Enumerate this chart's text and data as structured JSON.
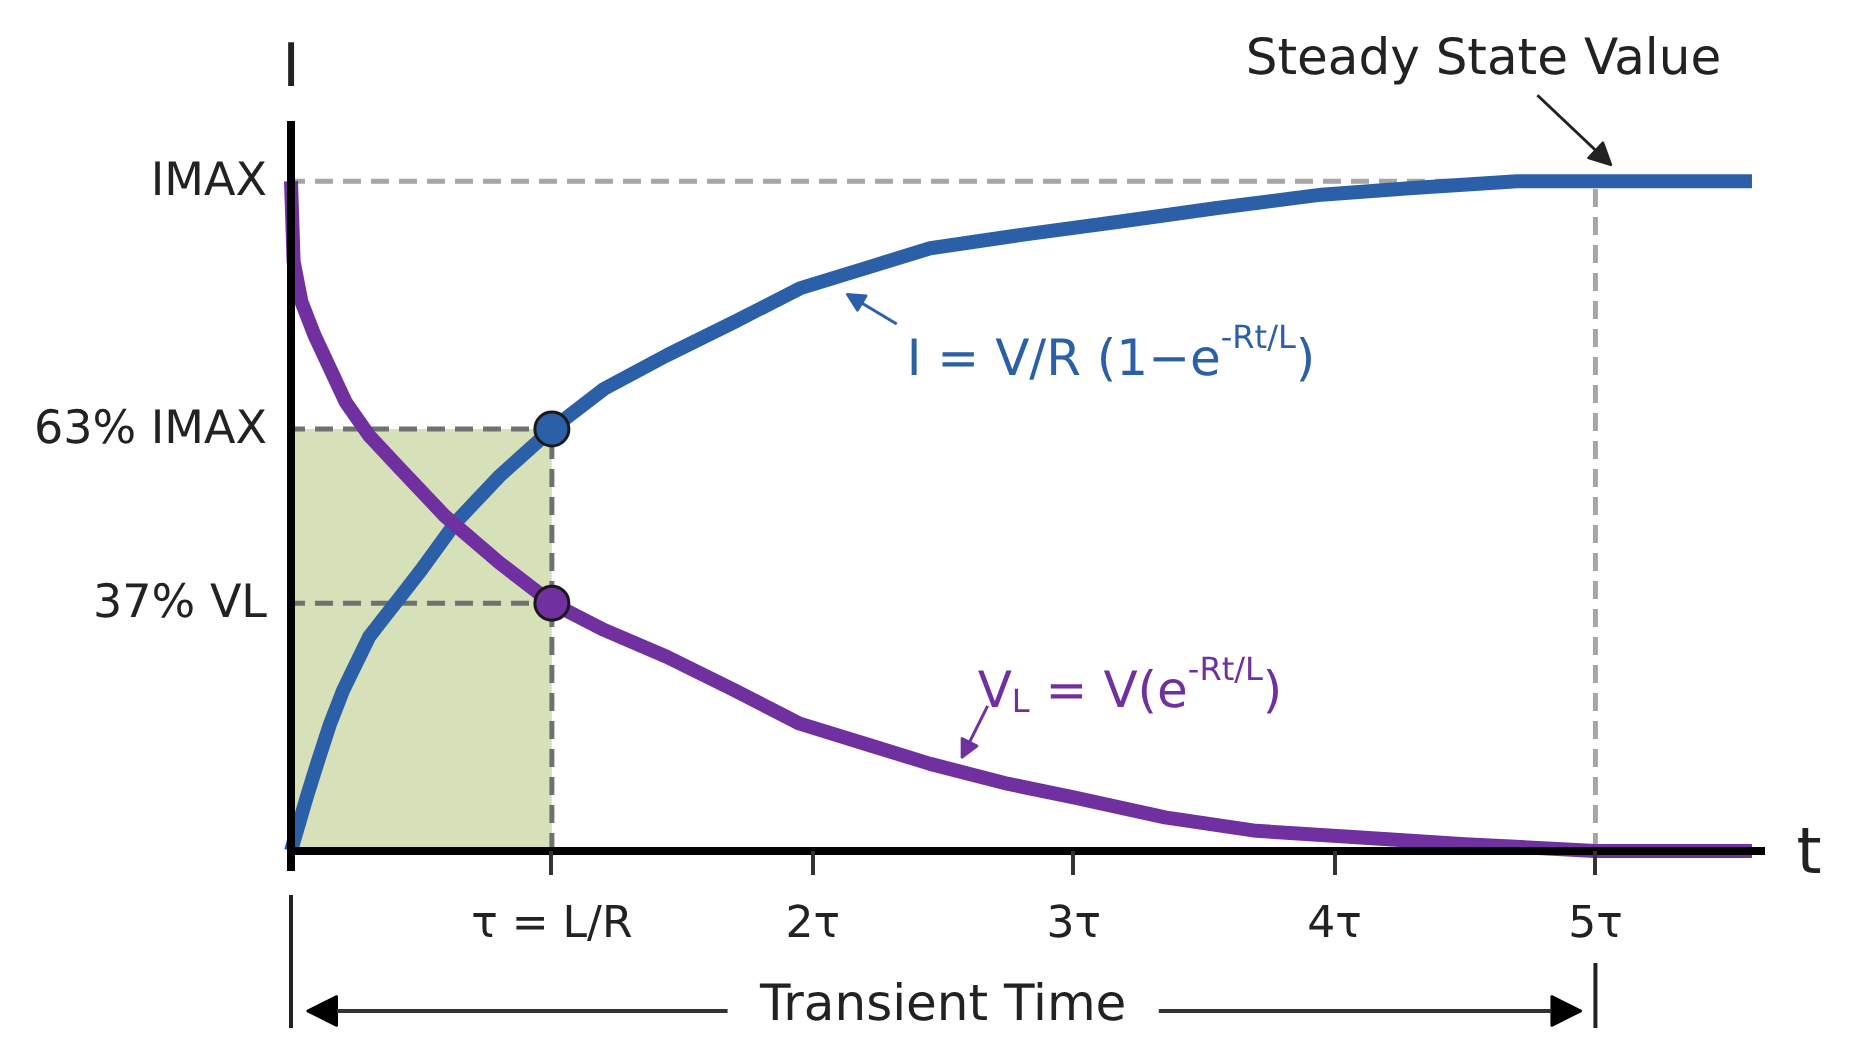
{
  "chart_data": {
    "type": "line",
    "xlabel": "t",
    "ylabel": "I",
    "annotations": [
      {
        "text": "Steady State Value",
        "x": 5,
        "y": 1
      },
      "Transient Time"
    ],
    "xlim": [
      0,
      5.65
    ],
    "ylim": [
      -0.03,
      1.09
    ],
    "xticks": [
      {
        "value": 1,
        "label": "τ = L/R"
      },
      {
        "value": 2,
        "label": "2τ"
      },
      {
        "value": 3,
        "label": "3τ"
      },
      {
        "value": 4,
        "label": "4τ"
      },
      {
        "value": 5,
        "label": "5τ"
      }
    ],
    "yticks": [
      {
        "value": 0.37,
        "label": "37% VL"
      },
      {
        "value": 0.63,
        "label": "63% IMAX"
      },
      {
        "value": 1,
        "label": "IMAX"
      }
    ],
    "bands": [
      {
        "axis": "x",
        "from": 0,
        "to": 1,
        "color": "#d6e1b9"
      }
    ],
    "ref_lines": [
      {
        "axis": "x",
        "value": 1,
        "color": "#707070",
        "line_style": "dashed"
      },
      {
        "axis": "x",
        "value": 5,
        "color": "#a6a6a6",
        "line_style": "dashed"
      },
      {
        "axis": "y",
        "value": 0.37,
        "color": "#707070",
        "line_style": "dashed"
      },
      {
        "axis": "y",
        "value": 0.63,
        "color": "#707070",
        "line_style": "dashed"
      },
      {
        "axis": "y",
        "value": 1,
        "color": "#a6a6a6",
        "line_style": "dashed"
      }
    ],
    "series": [
      {
        "name": "I = V/R (1−e$^{-Rt/L}$)",
        "color": "#2b5fa8",
        "x": [
          0,
          0.06,
          0.1,
          0.15,
          0.2,
          0.25,
          0.3,
          0.36,
          0.42,
          0.5,
          0.63,
          0.8,
          1,
          1.2,
          1.44,
          1.7,
          1.95,
          2.2,
          2.45,
          2.8,
          3.18,
          3.55,
          3.95,
          4.3,
          4.7,
          5,
          5.6
        ],
        "values": [
          0,
          0.08,
          0.13,
          0.19,
          0.24,
          0.28,
          0.32,
          0.35,
          0.38,
          0.42,
          0.49,
          0.56,
          0.63,
          0.69,
          0.74,
          0.79,
          0.84,
          0.87,
          0.9,
          0.92,
          0.94,
          0.96,
          0.98,
          0.99,
          1,
          1,
          1
        ]
      },
      {
        "name": "V$_{L}$ = V(e$^{-Rt/L}$)",
        "color": "#7030a0",
        "x": [
          0,
          0.01,
          0.04,
          0.09,
          0.15,
          0.21,
          0.3,
          0.42,
          0.59,
          0.8,
          1,
          1.2,
          1.44,
          1.7,
          1.95,
          2.2,
          2.45,
          2.75,
          3,
          3.35,
          3.7,
          4.1,
          4.5,
          5,
          5.6
        ],
        "values": [
          1,
          0.88,
          0.82,
          0.77,
          0.72,
          0.67,
          0.62,
          0.57,
          0.5,
          0.43,
          0.37,
          0.33,
          0.29,
          0.24,
          0.19,
          0.16,
          0.13,
          0.1,
          0.08,
          0.05,
          0.03,
          0.02,
          0.01,
          0,
          0
        ]
      },
      {
        "type": "scatter",
        "marker": "circle",
        "color": "#2b5fa8",
        "x": [
          1
        ],
        "values": [
          0.63
        ]
      },
      {
        "type": "scatter",
        "marker": "circle",
        "color": "#7030a0",
        "x": [
          1
        ],
        "values": [
          0.37
        ]
      }
    ]
  }
}
